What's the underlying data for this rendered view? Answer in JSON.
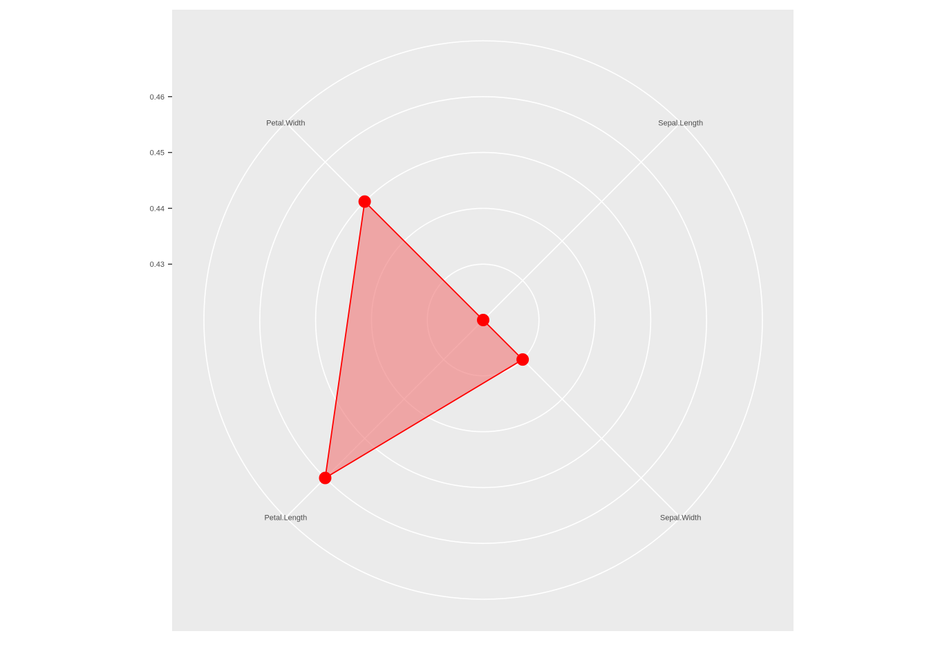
{
  "chart_data": {
    "type": "radar",
    "title": "",
    "axes": [
      "Sepal.Length",
      "Sepal.Width",
      "Petal.Length",
      "Petal.Width"
    ],
    "series": [
      {
        "values": [
          0.42,
          0.43,
          0.46,
          0.45
        ],
        "color": "#ff0000",
        "fill": "#f08080"
      }
    ],
    "radial_ticks": [
      "0.43",
      "0.44",
      "0.45",
      "0.46"
    ],
    "radial_tick_values": [
      0.43,
      0.44,
      0.45,
      0.46
    ],
    "radial_range": [
      0.42,
      0.47
    ],
    "grid": true,
    "panel_background": "#ebebeb",
    "grid_color": "#ffffff"
  }
}
